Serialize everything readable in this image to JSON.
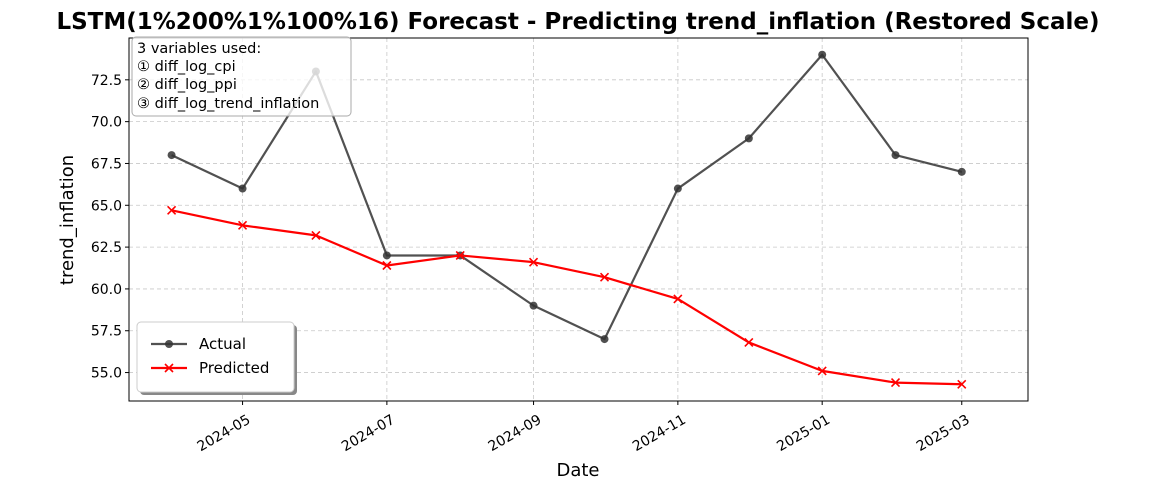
{
  "chart_data": {
    "type": "line",
    "title": "LSTM(1%200%1%100%16) Forecast - Predicting trend_inflation (Restored Scale)",
    "xlabel": "Date",
    "ylabel": "trend_inflation",
    "x": [
      "2024-04-01",
      "2024-05-01",
      "2024-06-01",
      "2024-07-01",
      "2024-08-01",
      "2024-09-01",
      "2024-10-01",
      "2024-11-01",
      "2024-12-01",
      "2025-01-01",
      "2025-02-01",
      "2025-03-01"
    ],
    "x_ticks": [
      "2024-05",
      "2024-07",
      "2024-09",
      "2024-11",
      "2025-01",
      "2025-03"
    ],
    "y_ticks": [
      "55.0",
      "57.5",
      "60.0",
      "62.5",
      "65.0",
      "67.5",
      "70.0",
      "72.5"
    ],
    "ylim": [
      53.3,
      75.0
    ],
    "xlim": [
      "2024-03-14",
      "2025-03-29"
    ],
    "grid": true,
    "legend_position": "lower-left",
    "series": [
      {
        "name": "Actual",
        "color": "#333333",
        "marker": "circle",
        "values": [
          68.0,
          66.0,
          73.0,
          62.0,
          62.0,
          59.0,
          57.0,
          66.0,
          69.0,
          74.0,
          68.0,
          67.0
        ]
      },
      {
        "name": "Predicted",
        "color": "#ff0000",
        "marker": "x",
        "values": [
          64.7,
          63.8,
          63.2,
          61.4,
          62.0,
          61.6,
          60.7,
          59.4,
          56.8,
          55.1,
          54.4,
          54.3
        ]
      }
    ],
    "annotation": {
      "lines": [
        "3 variables used:",
        "① diff_log_cpi",
        "② diff_log_ppi",
        "③ diff_log_trend_inflation"
      ]
    }
  }
}
